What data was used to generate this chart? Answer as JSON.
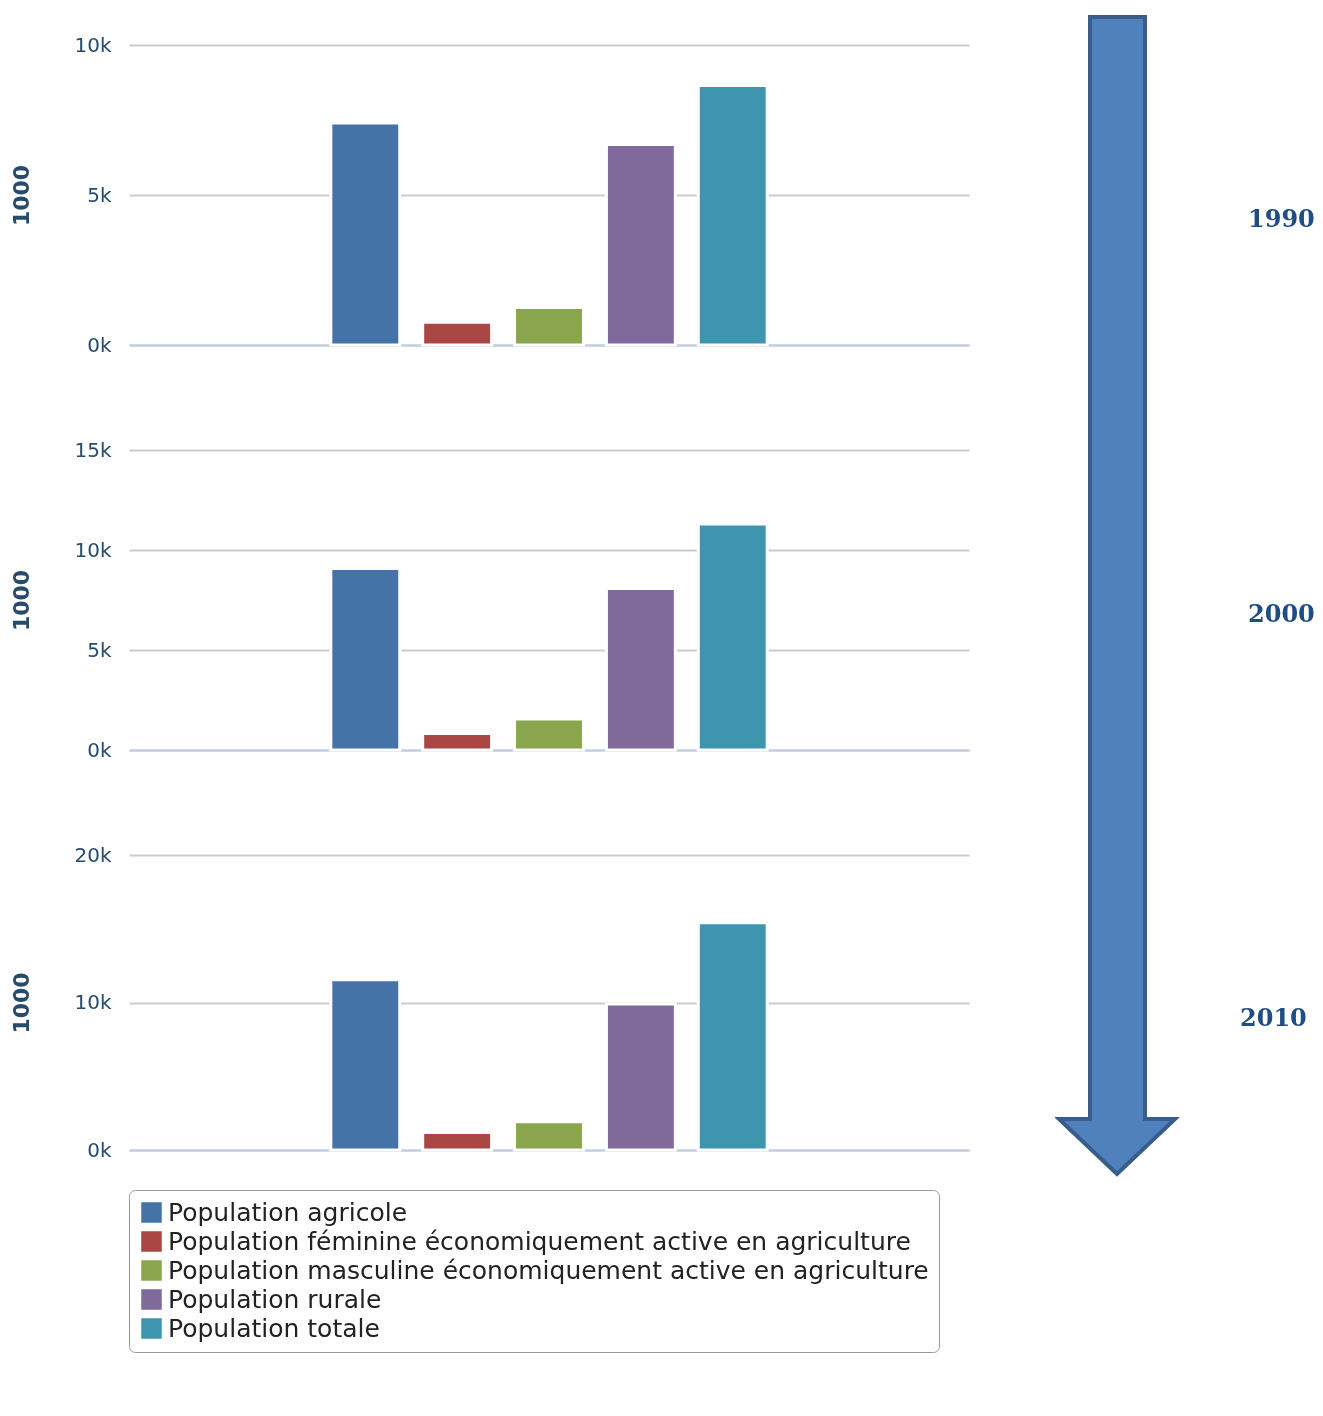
{
  "chart_data": [
    {
      "type": "bar",
      "ylabel": "1000",
      "categories": [
        null
      ],
      "annotations": [
        "1990"
      ],
      "ylim": [
        0,
        10000
      ],
      "yticks": [
        {
          "value": 0,
          "label": "0k"
        },
        {
          "value": 5000,
          "label": "5k"
        },
        {
          "value": 10000,
          "label": "10k"
        }
      ],
      "grid": "y",
      "series": [
        {
          "color": "#4572a7",
          "values": [
            7400
          ]
        },
        {
          "color": "#aa4643",
          "values": [
            760
          ]
        },
        {
          "color": "#89a54e",
          "values": [
            1250
          ]
        },
        {
          "color": "#80699b",
          "values": [
            6680
          ]
        },
        {
          "color": "#3d96ae",
          "values": [
            8650
          ]
        }
      ]
    },
    {
      "type": "bar",
      "ylabel": "1000",
      "categories": [
        null
      ],
      "annotations": [
        "2000"
      ],
      "ylim": [
        0,
        15000
      ],
      "yticks": [
        {
          "value": 0,
          "label": "0k"
        },
        {
          "value": 5000,
          "label": "5k"
        },
        {
          "value": 10000,
          "label": "10k"
        },
        {
          "value": 15000,
          "label": "15k"
        }
      ],
      "grid": "y",
      "series": [
        {
          "color": "#4572a7",
          "values": [
            9080
          ]
        },
        {
          "color": "#aa4643",
          "values": [
            820
          ]
        },
        {
          "color": "#89a54e",
          "values": [
            1550
          ]
        },
        {
          "color": "#80699b",
          "values": [
            8070
          ]
        },
        {
          "color": "#3d96ae",
          "values": [
            11300
          ]
        }
      ]
    },
    {
      "type": "bar",
      "ylabel": "1000",
      "categories": [
        null
      ],
      "annotations": [
        "2010"
      ],
      "ylim": [
        0,
        20000
      ],
      "yticks": [
        {
          "value": 0,
          "label": "0k"
        },
        {
          "value": 10000,
          "label": "10k"
        },
        {
          "value": 20000,
          "label": "20k"
        }
      ],
      "grid": "y",
      "legend": "bottom",
      "series": [
        {
          "name": "Population agricole",
          "color": "#4572a7",
          "values": [
            11550
          ]
        },
        {
          "name": "Population féminine économiquement active en agriculture",
          "color": "#aa4643",
          "values": [
            1190
          ]
        },
        {
          "name": "Population masculine économiquement active en agriculture",
          "color": "#89a54e",
          "values": [
            1910
          ]
        },
        {
          "name": "Population rurale",
          "color": "#80699b",
          "values": [
            9900
          ]
        },
        {
          "name": "Population totale",
          "color": "#3d96ae",
          "values": [
            15400
          ]
        }
      ]
    }
  ]
}
